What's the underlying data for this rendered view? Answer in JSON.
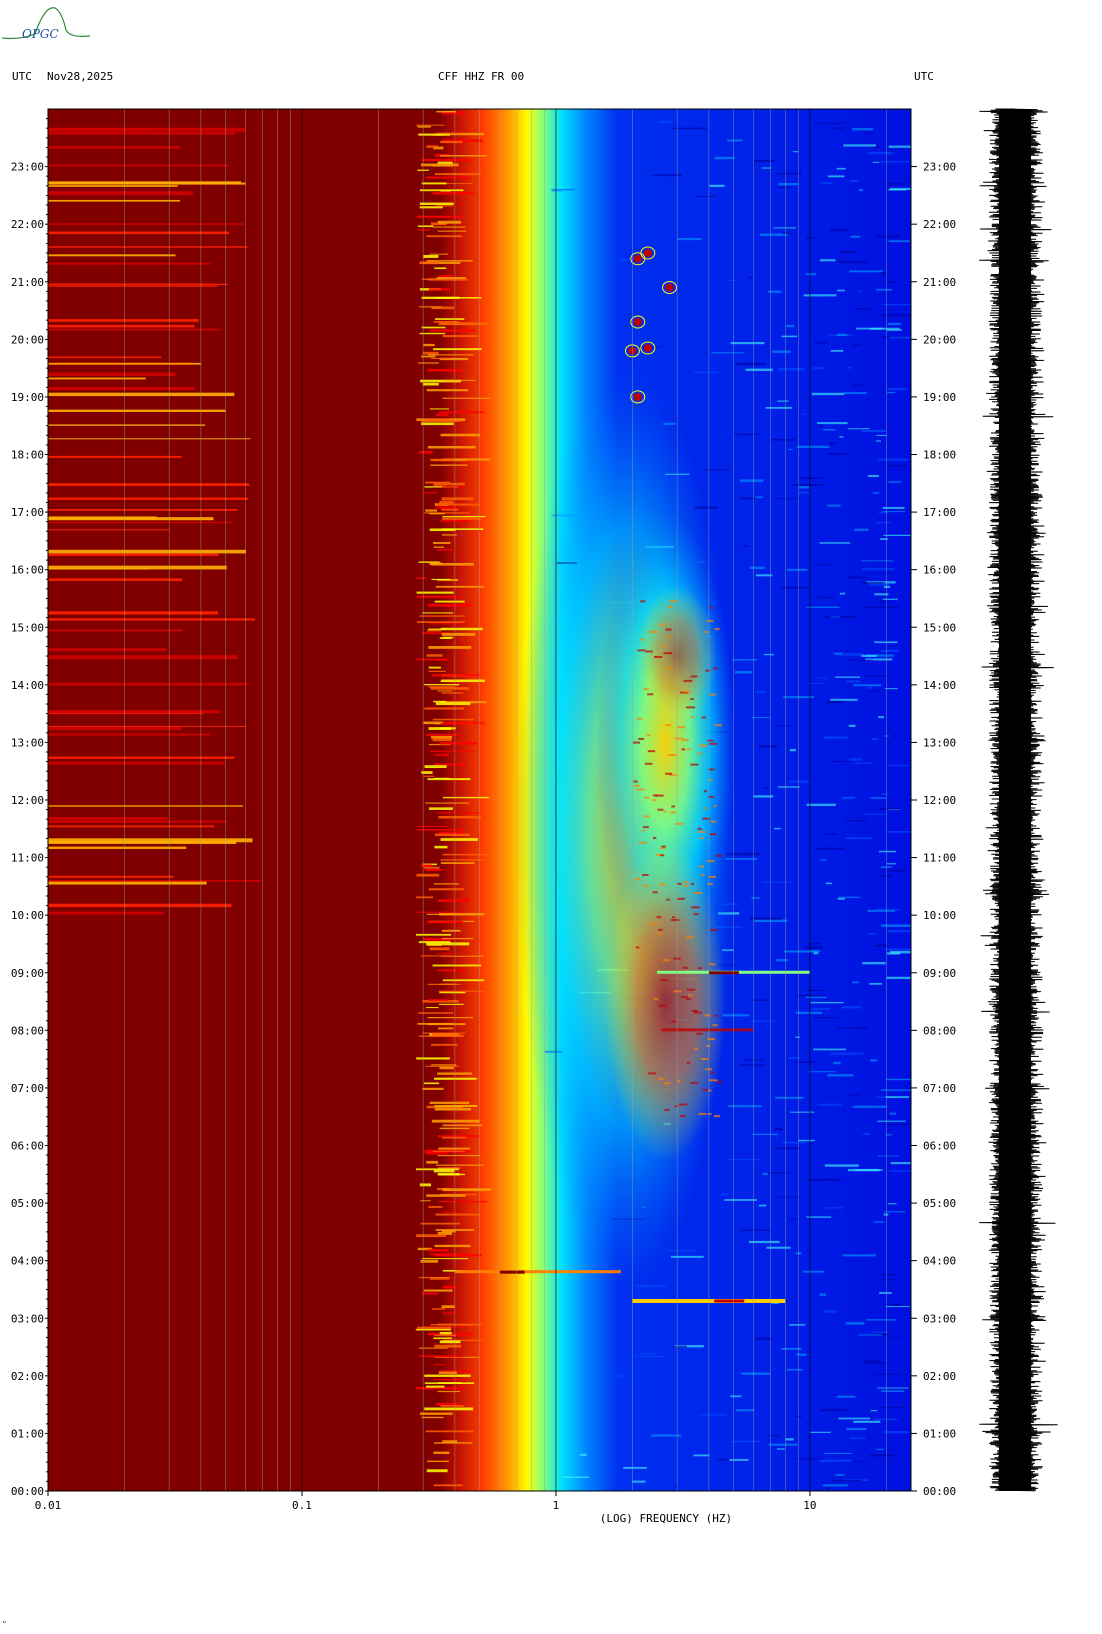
{
  "header": {
    "left_tz": "UTC",
    "date": "Nov28,2025",
    "title": "CFF HHZ FR 00",
    "right_tz": "UTC"
  },
  "logo": {
    "text": "OPGC"
  },
  "footer_mark": "\"",
  "chart_data": {
    "type": "heatmap",
    "title": "CFF HHZ FR 00",
    "date": "Nov28,2025",
    "xlabel": "(LOG) FREQUENCY (HZ)",
    "ylabel": "UTC",
    "x_scale": "log",
    "xlim": [
      0.01,
      25
    ],
    "x_ticks": [
      {
        "value": 0.01,
        "label": "0.01"
      },
      {
        "value": 0.1,
        "label": "0.1"
      },
      {
        "value": 1,
        "label": "1"
      },
      {
        "value": 10,
        "label": "10"
      }
    ],
    "ylim_hours": [
      0,
      24
    ],
    "y_ticks": [
      "00:00",
      "01:00",
      "02:00",
      "03:00",
      "04:00",
      "05:00",
      "06:00",
      "07:00",
      "08:00",
      "09:00",
      "10:00",
      "11:00",
      "12:00",
      "13:00",
      "14:00",
      "15:00",
      "16:00",
      "17:00",
      "18:00",
      "19:00",
      "20:00",
      "21:00",
      "22:00",
      "23:00"
    ],
    "colormap": [
      "#00007f",
      "#0000ff",
      "#0080ff",
      "#00ffff",
      "#80ff80",
      "#ffff00",
      "#ff8000",
      "#ff0000",
      "#800000"
    ],
    "features": [
      {
        "description": "High power (dark red) below 0.3 Hz for the whole day",
        "freq_range": [
          0.01,
          0.3
        ]
      },
      {
        "description": "Microseism band transition",
        "freq_range": [
          0.3,
          0.8
        ]
      },
      {
        "description": "Daytime cultural noise peak",
        "freq_range": [
          2,
          4
        ],
        "time_range_hours": [
          6.5,
          15
        ]
      },
      {
        "description": "Event",
        "time_hours": 3.8,
        "freq_range": [
          0.4,
          1.8
        ]
      },
      {
        "description": "Event",
        "time_hours": 3.3,
        "freq_range": [
          2,
          8
        ]
      },
      {
        "description": "Event",
        "time_hours": 9.0,
        "freq_range": [
          2.5,
          10
        ]
      }
    ],
    "seismogram": {
      "description": "Continuous waveform trace for 00:00-24:00"
    }
  }
}
